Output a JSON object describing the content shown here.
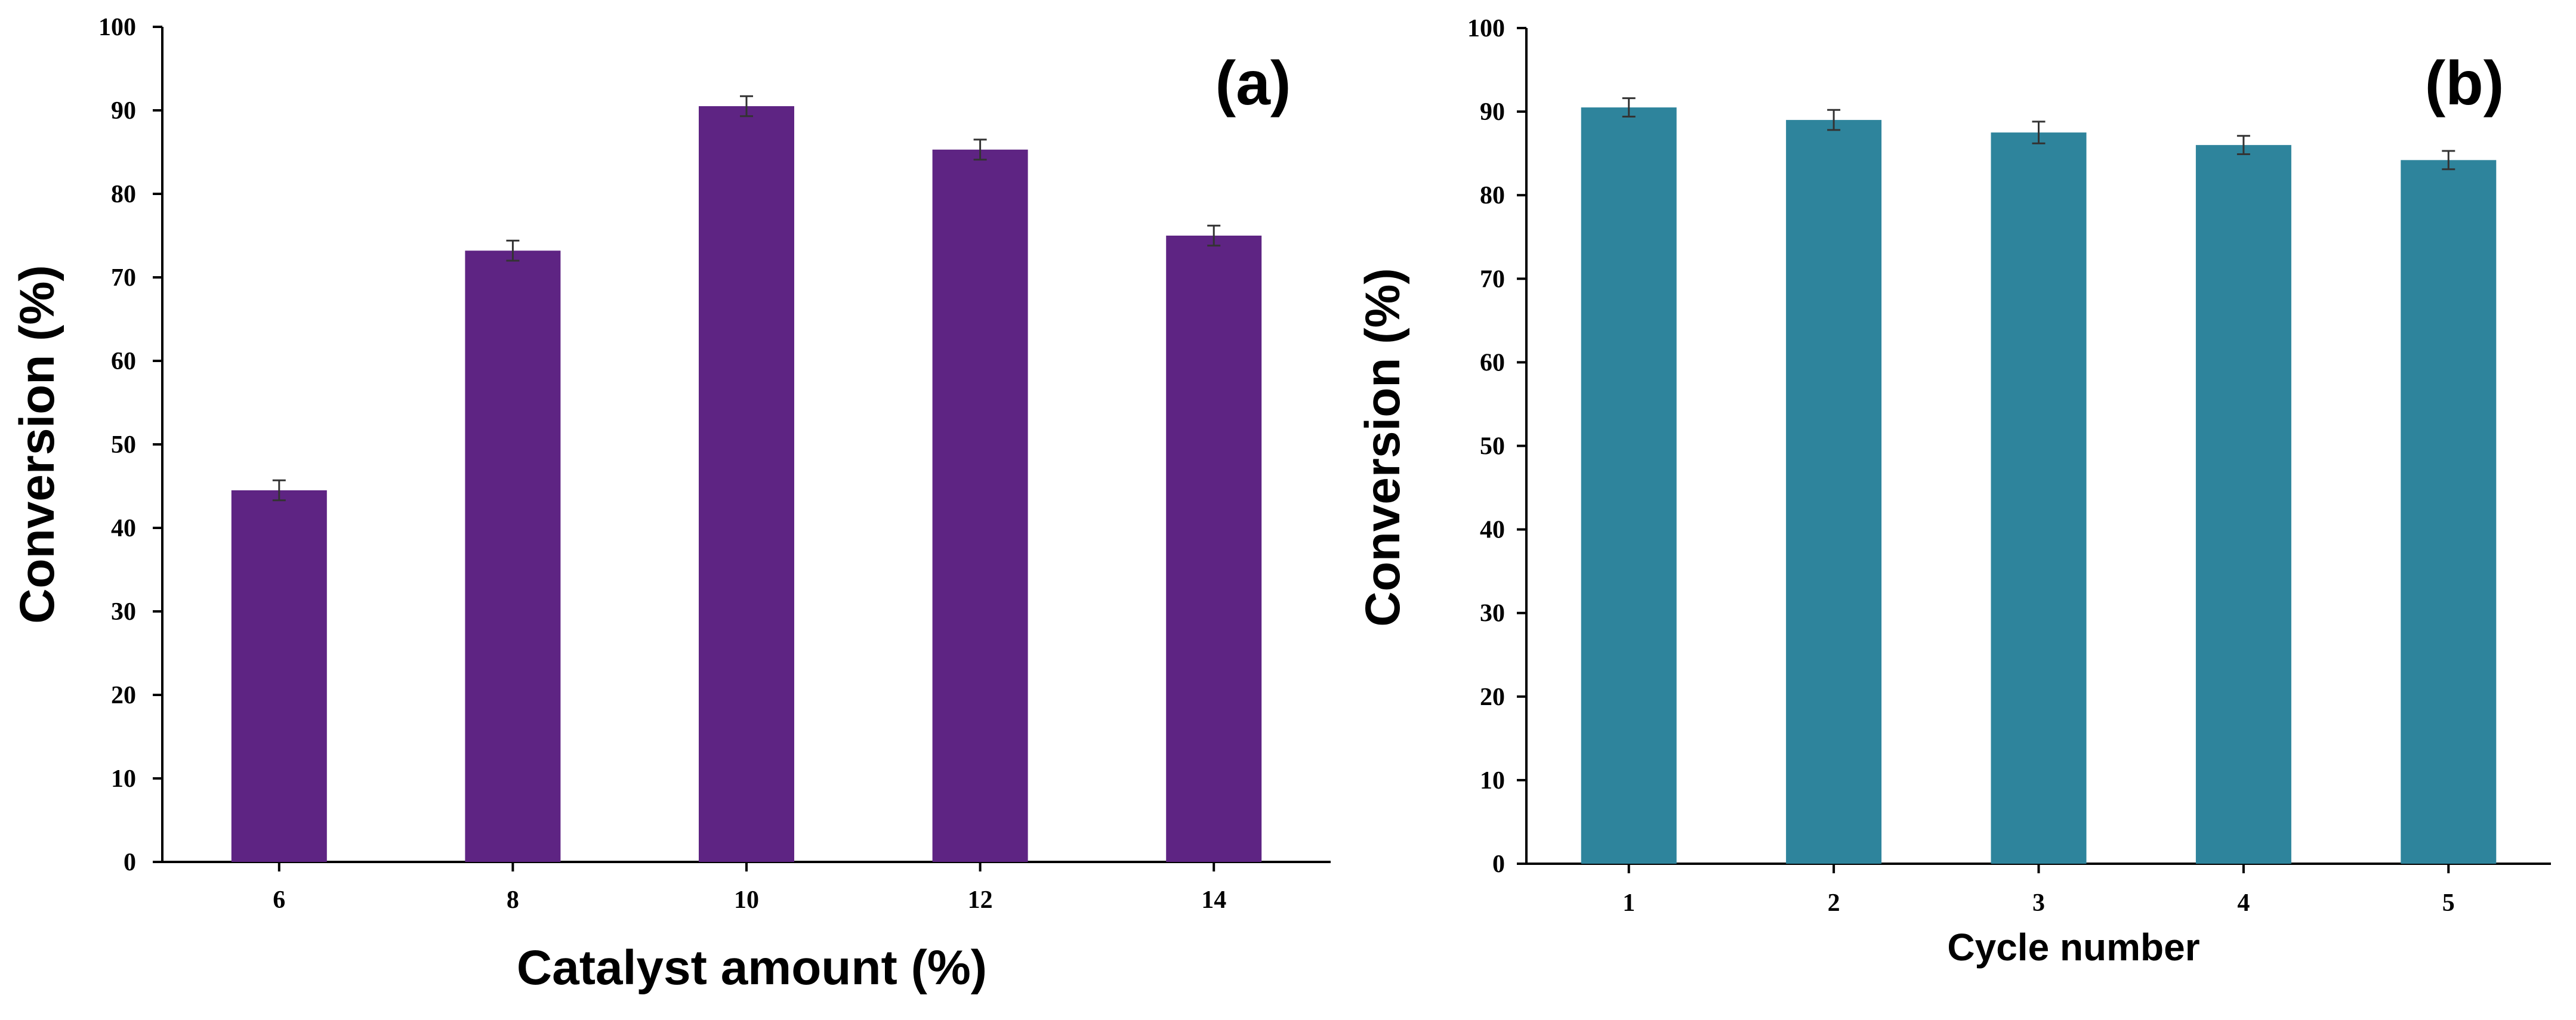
{
  "chart_data": [
    {
      "type": "bar",
      "panel_label": "(a)",
      "title": "",
      "xlabel": "Catalyst amount (%)",
      "ylabel": "Conversion (%)",
      "categories": [
        "6",
        "8",
        "10",
        "12",
        "14"
      ],
      "values": [
        44.5,
        73.2,
        90.5,
        85.3,
        75.0
      ],
      "errors": [
        1.2,
        1.2,
        1.2,
        1.2,
        1.2
      ],
      "ylim": [
        0,
        100
      ],
      "yticks": [
        "0",
        "10",
        "20",
        "30",
        "40",
        "50",
        "60",
        "70",
        "80",
        "90",
        "100"
      ],
      "color": "#5E2483",
      "grid": false
    },
    {
      "type": "bar",
      "panel_label": "(b)",
      "title": "",
      "xlabel": "Cycle number",
      "ylabel": "Conversion (%)",
      "categories": [
        "1",
        "2",
        "3",
        "4",
        "5"
      ],
      "values": [
        90.5,
        89.0,
        87.5,
        86.0,
        84.2
      ],
      "errors": [
        1.1,
        1.2,
        1.3,
        1.1,
        1.1
      ],
      "ylim": [
        0,
        100
      ],
      "yticks": [
        "0",
        "10",
        "20",
        "30",
        "40",
        "50",
        "60",
        "70",
        "80",
        "90",
        "100"
      ],
      "color": "#2E849C",
      "grid": false
    }
  ]
}
